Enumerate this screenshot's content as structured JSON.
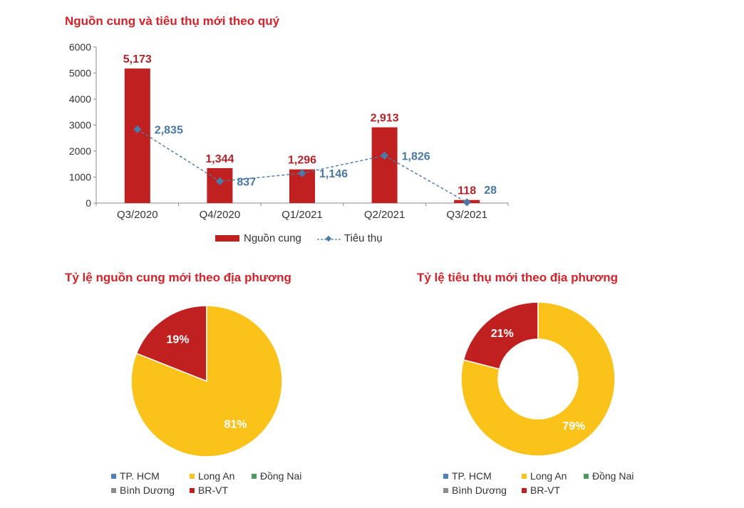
{
  "colors": {
    "supply_bar": "#c0201f",
    "consumption_line": "#4a7aa8",
    "title": "#d72128",
    "tp_hcm": "#4f81bd",
    "long_an": "#fbc21a",
    "dong_nai": "#4e9a5a",
    "binh_duong": "#8c8c8c",
    "br_vt": "#c0201f"
  },
  "titles": {
    "bar_chart": "Nguồn cung và tiêu thụ mới theo quý",
    "supply_pie": "Tỷ lệ nguồn cung mới theo địa phương",
    "consumption_pie": "Tỷ lệ tiêu thụ mới theo địa phương"
  },
  "bar_legend": {
    "supply": "Nguồn cung",
    "consumption": "Tiêu thụ"
  },
  "pie_legend": [
    {
      "label": "TP. HCM",
      "color": "#4f81bd"
    },
    {
      "label": "Long An",
      "color": "#fbc21a"
    },
    {
      "label": "Đồng Nai",
      "color": "#4e9a5a"
    },
    {
      "label": "Bình Dương",
      "color": "#8c8c8c"
    },
    {
      "label": "BR-VT",
      "color": "#c0201f"
    }
  ],
  "chart_data": [
    {
      "type": "bar",
      "title": "Nguồn cung và tiêu thụ mới theo quý",
      "categories": [
        "Q3/2020",
        "Q4/2020",
        "Q1/2021",
        "Q2/2021",
        "Q3/2021"
      ],
      "series": [
        {
          "name": "Nguồn cung",
          "kind": "bar",
          "values": [
            5173,
            1344,
            1296,
            2913,
            118
          ],
          "labels": [
            "5,173",
            "1,344",
            "1,296",
            "2,913",
            "118"
          ]
        },
        {
          "name": "Tiêu thụ",
          "kind": "line",
          "values": [
            2835,
            837,
            1146,
            1826,
            28
          ],
          "labels": [
            "2,835",
            "837",
            "1,146",
            "1,826",
            "28"
          ]
        }
      ],
      "ylim": [
        0,
        6000
      ],
      "yticks": [
        0,
        1000,
        2000,
        3000,
        4000,
        5000,
        6000
      ],
      "legend": "bottom"
    },
    {
      "type": "pie",
      "title": "Tỷ lệ nguồn cung mới theo địa phương",
      "slices": [
        {
          "name": "BR-VT",
          "value": 19,
          "label": "19%"
        },
        {
          "name": "Long An",
          "value": 81,
          "label": "81%"
        }
      ],
      "legend": "bottom"
    },
    {
      "type": "pie",
      "subtype": "donut",
      "title": "Tỷ lệ tiêu thụ mới theo địa phương",
      "slices": [
        {
          "name": "BR-VT",
          "value": 21,
          "label": "21%"
        },
        {
          "name": "Long An",
          "value": 79,
          "label": "79%"
        }
      ],
      "legend": "bottom"
    }
  ]
}
